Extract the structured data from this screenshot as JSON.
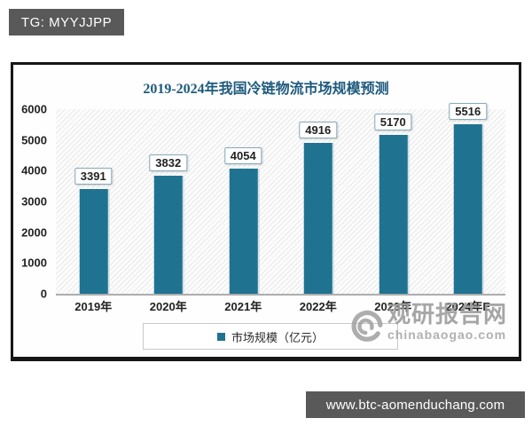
{
  "badge": {
    "text": "TG: MYYJJPP"
  },
  "chart_data": {
    "type": "bar",
    "title": "2019-2024年我国冷链物流市场规模预测",
    "categories": [
      "2019年",
      "2020年",
      "2021年",
      "2022年",
      "2023年",
      "2024年E"
    ],
    "values": [
      3391,
      3832,
      4054,
      4916,
      5170,
      5516
    ],
    "series": [
      {
        "name": "市场规模（亿元）",
        "values": [
          3391,
          3832,
          4054,
          4916,
          5170,
          5516
        ]
      }
    ],
    "xlabel": "",
    "ylabel": "",
    "ylim": [
      0,
      6000
    ],
    "yticks": [
      0,
      1000,
      2000,
      3000,
      4000,
      5000,
      6000
    ],
    "grid": false,
    "legend_position": "bottom",
    "legend": "市场规模（亿元）",
    "bar_color": "#1f7391",
    "data_labels": true
  },
  "watermark": {
    "name_cn": "观研报告网",
    "site": "chinabaogao.com"
  },
  "footer": {
    "url": "www.btc-aomenduchang.com"
  },
  "colors": {
    "bar": "#1f7391",
    "title": "#1e5a7d",
    "badge_bg": "#595959",
    "url_bg": "#595959",
    "watermark_gray": "#9b9b9b",
    "panel_border": "#161616"
  }
}
